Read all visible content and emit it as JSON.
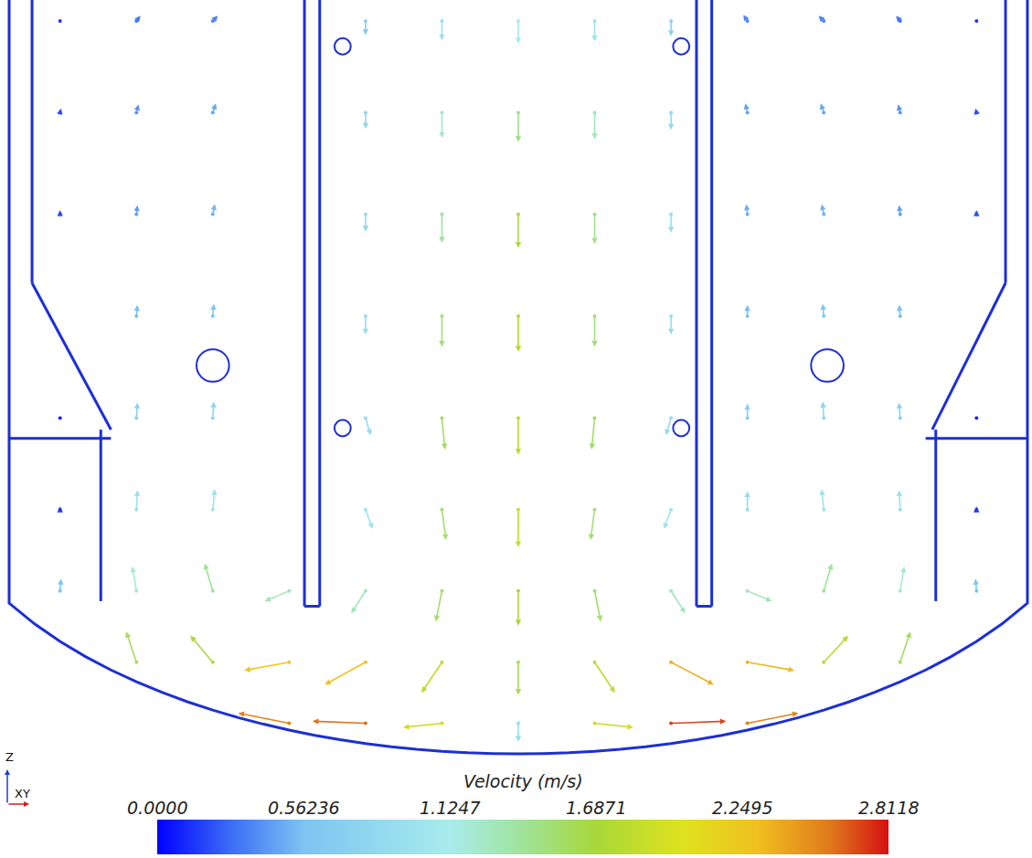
{
  "chart_data": {
    "type": "vector_field",
    "colorbar": {
      "title": "Velocity (m/s)",
      "range": [
        0,
        2.8118
      ],
      "ticks": [
        {
          "value": 0,
          "label": "0.0000"
        },
        0.56236,
        1.1247,
        1.6871,
        2.2495,
        2.8118
      ]
    },
    "axis_triad": {
      "vertical": "Z",
      "horizontal": "XY"
    },
    "vectors": [
      [
        -0.3,
        1.44,
        0,
        -0.7
      ],
      [
        -0.15,
        1.44,
        0,
        -0.95
      ],
      [
        0,
        1.44,
        0,
        -1.1
      ],
      [
        0.15,
        1.44,
        0,
        -1.0
      ],
      [
        0.3,
        1.44,
        0,
        -0.75
      ],
      [
        -0.3,
        1.26,
        0,
        -0.8
      ],
      [
        -0.15,
        1.26,
        0,
        -1.25
      ],
      [
        0,
        1.26,
        0,
        -1.45
      ],
      [
        0.15,
        1.26,
        0,
        -1.3
      ],
      [
        0.3,
        1.26,
        0,
        -0.85
      ],
      [
        -0.3,
        1.06,
        0,
        -0.85
      ],
      [
        -0.15,
        1.06,
        0,
        -1.4
      ],
      [
        0,
        1.06,
        0,
        -1.65
      ],
      [
        0.15,
        1.06,
        0,
        -1.45
      ],
      [
        0.3,
        1.06,
        0,
        -0.9
      ],
      [
        -0.3,
        0.86,
        0,
        -0.9
      ],
      [
        -0.15,
        0.86,
        0,
        -1.5
      ],
      [
        0,
        0.86,
        0,
        -1.75
      ],
      [
        0.15,
        0.86,
        0,
        -1.5
      ],
      [
        0.3,
        0.86,
        0,
        -0.9
      ],
      [
        -0.3,
        0.66,
        0.25,
        -0.85
      ],
      [
        -0.15,
        0.66,
        0.15,
        -1.55
      ],
      [
        0,
        0.66,
        0,
        -1.8
      ],
      [
        0.15,
        0.66,
        -0.15,
        -1.55
      ],
      [
        0.3,
        0.66,
        -0.25,
        -0.85
      ],
      [
        -0.3,
        0.48,
        0.35,
        -0.95
      ],
      [
        -0.15,
        0.48,
        0.2,
        -1.5
      ],
      [
        0,
        0.48,
        0,
        -1.85
      ],
      [
        0.15,
        0.48,
        -0.2,
        -1.5
      ],
      [
        0.3,
        0.48,
        -0.35,
        -0.95
      ],
      [
        -0.45,
        0.32,
        -1.2,
        -0.5
      ],
      [
        -0.3,
        0.32,
        -0.7,
        -1.1
      ],
      [
        -0.15,
        0.32,
        -0.3,
        -1.5
      ],
      [
        0,
        0.32,
        0,
        -1.7
      ],
      [
        0.15,
        0.32,
        0.3,
        -1.5
      ],
      [
        0.3,
        0.32,
        0.7,
        -1.1
      ],
      [
        0.45,
        0.32,
        1.2,
        -0.5
      ],
      [
        -0.75,
        0.18,
        -0.5,
        1.5
      ],
      [
        -0.6,
        0.18,
        -1.1,
        1.3
      ],
      [
        -0.45,
        0.18,
        -2.2,
        -0.4
      ],
      [
        -0.3,
        0.18,
        -2.0,
        -1.1
      ],
      [
        -0.15,
        0.18,
        -1.0,
        -1.5
      ],
      [
        0,
        0.18,
        0,
        -1.6
      ],
      [
        0.15,
        0.18,
        1.0,
        -1.5
      ],
      [
        0.3,
        0.18,
        2.1,
        -1.1
      ],
      [
        0.45,
        0.18,
        2.3,
        -0.4
      ],
      [
        0.6,
        0.18,
        1.2,
        1.3
      ],
      [
        0.75,
        0.18,
        0.5,
        1.5
      ],
      [
        -0.45,
        0.06,
        -2.5,
        0.5
      ],
      [
        -0.3,
        0.06,
        -2.6,
        0.1
      ],
      [
        -0.15,
        0.06,
        -1.9,
        -0.2
      ],
      [
        0,
        0.06,
        0,
        -0.9
      ],
      [
        0.15,
        0.06,
        1.9,
        -0.2
      ],
      [
        0.3,
        0.06,
        2.7,
        0.1
      ],
      [
        0.45,
        0.06,
        2.5,
        0.5
      ],
      [
        -0.9,
        0.32,
        0.05,
        0.6
      ],
      [
        -0.75,
        0.32,
        -0.2,
        1.2
      ],
      [
        -0.6,
        0.32,
        -0.4,
        1.35
      ],
      [
        0.6,
        0.32,
        0.4,
        1.35
      ],
      [
        0.75,
        0.32,
        0.2,
        1.2
      ],
      [
        0.9,
        0.32,
        -0.05,
        0.6
      ],
      [
        -0.9,
        0.48,
        0,
        0.15
      ],
      [
        -0.75,
        0.48,
        0.05,
        0.95
      ],
      [
        -0.6,
        0.48,
        0.1,
        1.0
      ],
      [
        0.45,
        0.48,
        0,
        0.9
      ],
      [
        0.6,
        0.48,
        -0.1,
        1.0
      ],
      [
        0.75,
        0.48,
        -0.05,
        0.95
      ],
      [
        0.9,
        0.48,
        0,
        0.15
      ],
      [
        -0.9,
        0.66,
        0,
        0.1
      ],
      [
        -0.75,
        0.66,
        0.05,
        0.75
      ],
      [
        -0.6,
        0.66,
        0.05,
        0.8
      ],
      [
        0.45,
        0.66,
        0,
        0.7
      ],
      [
        0.6,
        0.66,
        -0.05,
        0.8
      ],
      [
        0.75,
        0.66,
        -0.05,
        0.75
      ],
      [
        0.9,
        0.66,
        0,
        0.1
      ],
      [
        -0.75,
        0.86,
        0.05,
        0.55
      ],
      [
        -0.6,
        0.86,
        0.05,
        0.6
      ],
      [
        0.45,
        0.86,
        0,
        0.55
      ],
      [
        0.6,
        0.86,
        -0.05,
        0.6
      ],
      [
        0.75,
        0.86,
        -0.05,
        0.55
      ],
      [
        -0.9,
        1.06,
        0,
        0.2
      ],
      [
        -0.75,
        1.06,
        0.05,
        0.45
      ],
      [
        -0.6,
        1.06,
        0.1,
        0.5
      ],
      [
        0.45,
        1.06,
        -0.05,
        0.5
      ],
      [
        0.6,
        1.06,
        -0.1,
        0.5
      ],
      [
        0.75,
        1.06,
        -0.05,
        0.45
      ],
      [
        0.9,
        1.06,
        0,
        0.2
      ],
      [
        -0.9,
        1.26,
        0.05,
        0.2
      ],
      [
        -0.75,
        1.26,
        0.1,
        0.4
      ],
      [
        -0.6,
        1.26,
        0.15,
        0.45
      ],
      [
        0.45,
        1.26,
        -0.1,
        0.45
      ],
      [
        0.6,
        1.26,
        -0.15,
        0.45
      ],
      [
        0.75,
        1.26,
        -0.1,
        0.4
      ],
      [
        0.9,
        1.26,
        -0.05,
        0.2
      ],
      [
        -0.9,
        1.44,
        0.1,
        0.1
      ],
      [
        -0.75,
        1.44,
        0.2,
        0.25
      ],
      [
        -0.6,
        1.44,
        0.25,
        0.25
      ],
      [
        0.45,
        1.44,
        -0.2,
        0.3
      ],
      [
        0.6,
        1.44,
        -0.25,
        0.25
      ],
      [
        0.75,
        1.44,
        -0.2,
        0.25
      ],
      [
        0.9,
        1.44,
        -0.1,
        0.1
      ]
    ]
  }
}
